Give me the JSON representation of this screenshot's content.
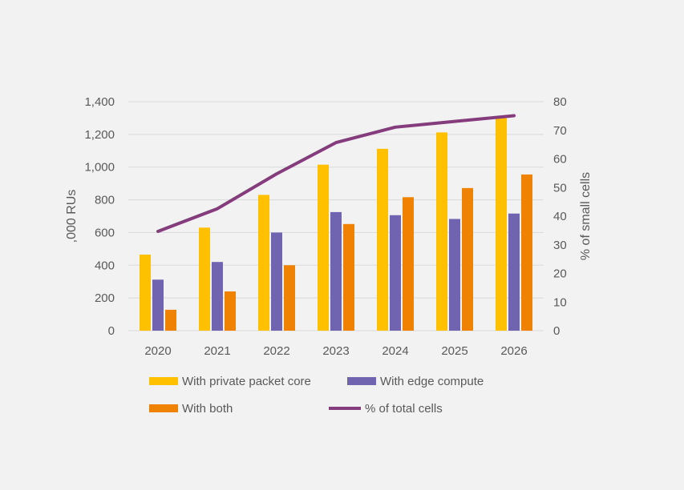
{
  "chart_data": {
    "type": "bar",
    "categories": [
      "2020",
      "2021",
      "2022",
      "2023",
      "2024",
      "2025",
      "2026"
    ],
    "series": [
      {
        "name": "With private packet core",
        "type": "bar",
        "axis": "left",
        "color": "#ffc000",
        "values": [
          465,
          630,
          830,
          1015,
          1112,
          1212,
          1300
        ]
      },
      {
        "name": "With edge compute",
        "type": "bar",
        "axis": "left",
        "color": "#7064b0",
        "values": [
          312,
          420,
          600,
          725,
          706,
          683,
          716
        ]
      },
      {
        "name": "With both",
        "type": "bar",
        "axis": "left",
        "color": "#ef8200",
        "values": [
          128,
          240,
          400,
          652,
          816,
          872,
          955
        ]
      },
      {
        "name": "% of total cells",
        "type": "line",
        "axis": "right",
        "color": "#843c7c",
        "values": [
          34.7,
          42.6,
          54.8,
          65.7,
          71.1,
          73.1,
          75.1
        ]
      }
    ],
    "ylabel": ",000 RUs",
    "y2label": "% of small cells",
    "ylim": [
      0,
      1400
    ],
    "y2lim": [
      0,
      80
    ],
    "yticks": [
      "0",
      "200",
      "400",
      "600",
      "800",
      "1,000",
      "1,200",
      "1,400"
    ],
    "y2ticks": [
      "0",
      "10",
      "20",
      "30",
      "40",
      "50",
      "60",
      "70",
      "80"
    ],
    "grid": true,
    "legend_position": "bottom"
  }
}
